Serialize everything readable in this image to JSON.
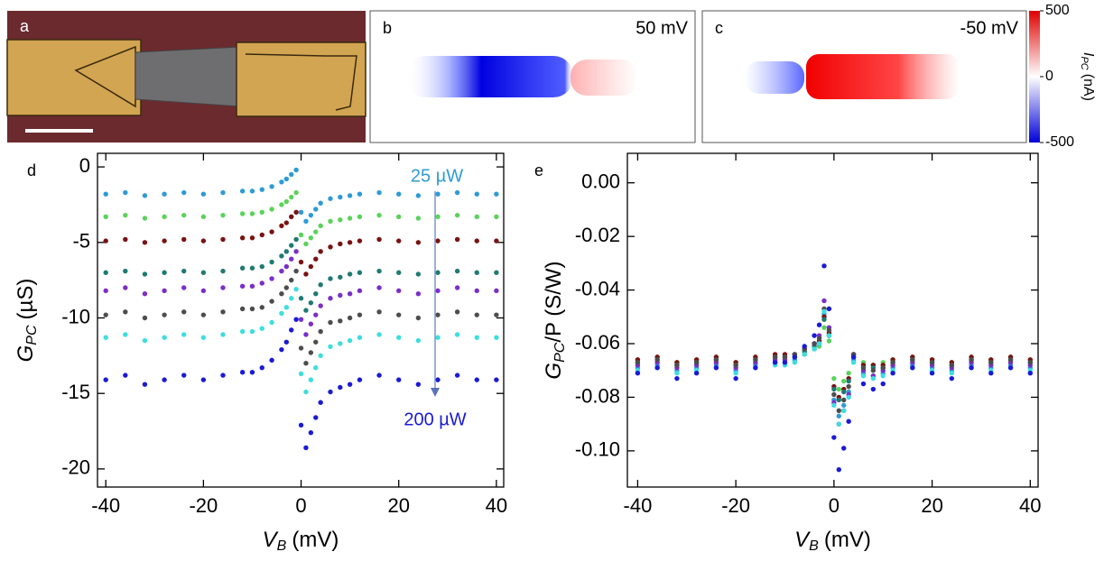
{
  "panel_labels": [
    "a",
    "b",
    "c",
    "d",
    "e"
  ],
  "images": {
    "b_label": "50 mV",
    "c_label": "-50 mV"
  },
  "colorbar": {
    "lim": [
      -500,
      500
    ],
    "ticks": [
      500,
      0,
      -500
    ],
    "label": {
      "main": "I",
      "sub": "PC",
      "unit": "(nA)"
    }
  },
  "chart_data": [
    {
      "type": "scatter",
      "x": [
        -40,
        -36,
        -32,
        -28,
        -24,
        -20,
        -16,
        -12,
        -10,
        -8,
        -6,
        -4,
        -3,
        -2,
        -1,
        0,
        1,
        2,
        3,
        4,
        6,
        8,
        10,
        12,
        16,
        20,
        24,
        28,
        32,
        36,
        40
      ],
      "series": [
        {
          "color": "#2e9bd6",
          "values": [
            -1.8,
            -1.7,
            -1.9,
            -1.8,
            -1.7,
            -1.8,
            -1.7,
            -1.6,
            -1.6,
            -1.5,
            -1.3,
            -1.0,
            -0.8,
            -0.5,
            -0.2,
            -3.0,
            -3.6,
            -3.2,
            -2.8,
            -2.4,
            -2.1,
            -2.0,
            -1.9,
            -1.8,
            -1.7,
            -1.8,
            -1.9,
            -1.8,
            -1.7,
            -1.8,
            -1.8
          ]
        },
        {
          "color": "#5ad35a",
          "values": [
            -3.3,
            -3.2,
            -3.4,
            -3.3,
            -3.2,
            -3.3,
            -3.2,
            -3.1,
            -3.1,
            -3.0,
            -2.8,
            -2.5,
            -2.3,
            -2.0,
            -1.7,
            -4.5,
            -5.1,
            -4.7,
            -4.3,
            -3.9,
            -3.6,
            -3.5,
            -3.4,
            -3.3,
            -3.2,
            -3.3,
            -3.4,
            -3.3,
            -3.2,
            -3.3,
            -3.3
          ]
        },
        {
          "color": "#7a1212",
          "values": [
            -4.9,
            -4.8,
            -5.0,
            -4.9,
            -4.8,
            -4.9,
            -4.8,
            -4.7,
            -4.7,
            -4.5,
            -4.3,
            -3.9,
            -3.7,
            -3.3,
            -3.0,
            -6.3,
            -7.1,
            -6.6,
            -6.1,
            -5.6,
            -5.3,
            -5.1,
            -5.0,
            -4.9,
            -4.8,
            -4.9,
            -5.0,
            -4.9,
            -4.8,
            -4.9,
            -4.9
          ]
        },
        {
          "color": "#1f7a73",
          "values": [
            -7.0,
            -6.9,
            -7.1,
            -7.0,
            -6.9,
            -7.0,
            -6.9,
            -6.7,
            -6.7,
            -6.6,
            -6.3,
            -5.9,
            -5.6,
            -5.2,
            -4.8,
            -8.7,
            -9.5,
            -9.0,
            -8.4,
            -7.8,
            -7.4,
            -7.3,
            -7.1,
            -7.0,
            -6.9,
            -7.0,
            -7.1,
            -7.0,
            -6.9,
            -7.0,
            -7.0
          ]
        },
        {
          "color": "#7b2ec9",
          "values": [
            -8.2,
            -8.0,
            -8.4,
            -8.2,
            -8.0,
            -8.2,
            -8.0,
            -7.9,
            -7.9,
            -7.7,
            -7.4,
            -6.9,
            -6.6,
            -6.1,
            -5.6,
            -10.1,
            -11.1,
            -10.4,
            -9.8,
            -9.2,
            -8.7,
            -8.5,
            -8.4,
            -8.2,
            -8.0,
            -8.2,
            -8.4,
            -8.2,
            -8.0,
            -8.2,
            -8.2
          ]
        },
        {
          "color": "#4d4d4d",
          "values": [
            -9.8,
            -9.6,
            -10.0,
            -9.8,
            -9.6,
            -9.8,
            -9.6,
            -9.4,
            -9.4,
            -9.3,
            -8.9,
            -8.4,
            -8.0,
            -7.5,
            -6.9,
            -12.0,
            -13.0,
            -12.3,
            -11.6,
            -10.9,
            -10.3,
            -10.2,
            -10.0,
            -9.8,
            -9.6,
            -9.8,
            -10.0,
            -9.8,
            -9.6,
            -9.8,
            -9.8
          ]
        },
        {
          "color": "#3ddede",
          "values": [
            -11.3,
            -11.1,
            -11.5,
            -11.3,
            -11.1,
            -11.3,
            -11.1,
            -10.9,
            -10.9,
            -10.7,
            -10.3,
            -9.7,
            -9.3,
            -8.7,
            -8.1,
            -13.7,
            -14.9,
            -14.1,
            -13.3,
            -12.5,
            -11.9,
            -11.7,
            -11.5,
            -11.3,
            -11.1,
            -11.3,
            -11.5,
            -11.3,
            -11.1,
            -11.3,
            -11.3
          ]
        },
        {
          "color": "#1a1ad6",
          "values": [
            -14.1,
            -13.8,
            -14.4,
            -14.1,
            -13.8,
            -14.1,
            -13.8,
            -13.6,
            -13.6,
            -13.3,
            -12.8,
            -12.1,
            -11.6,
            -10.8,
            -10.1,
            -17.1,
            -18.6,
            -17.6,
            -16.6,
            -15.6,
            -14.9,
            -14.6,
            -14.4,
            -14.1,
            -13.8,
            -14.1,
            -14.4,
            -14.1,
            -13.8,
            -14.1,
            -14.1
          ]
        }
      ],
      "xlim": [
        -41.7,
        41.5
      ],
      "ylim": [
        -21.2,
        0.9
      ],
      "xticks": [
        -40,
        -20,
        0,
        20,
        40
      ],
      "yticks": [
        0,
        -5,
        -10,
        -15,
        -20
      ],
      "xlabel": {
        "main": "V",
        "sub": "B",
        "unit": "(mV)"
      },
      "ylabel": {
        "main": "G",
        "sub": "PC",
        "unit": "(µS)"
      },
      "annotations": [
        "25 µW",
        "200 µW"
      ]
    },
    {
      "type": "scatter",
      "x": [
        -40,
        -36,
        -32,
        -28,
        -24,
        -20,
        -16,
        -12,
        -10,
        -8,
        -6,
        -4,
        -3,
        -2,
        -1,
        0,
        1,
        2,
        3,
        4,
        6,
        8,
        10,
        12,
        16,
        20,
        24,
        28,
        32,
        36,
        40
      ],
      "series": [
        {
          "color": "#2e9bd6",
          "values": [
            -0.069,
            -0.068,
            -0.07,
            -0.069,
            -0.068,
            -0.07,
            -0.068,
            -0.067,
            -0.067,
            -0.066,
            -0.064,
            -0.062,
            -0.06,
            -0.049,
            -0.057,
            -0.081,
            -0.087,
            -0.083,
            -0.078,
            -0.066,
            -0.071,
            -0.072,
            -0.071,
            -0.069,
            -0.068,
            -0.069,
            -0.07,
            -0.068,
            -0.069,
            -0.068,
            -0.069
          ]
        },
        {
          "color": "#5ad35a",
          "values": [
            -0.066,
            -0.065,
            -0.067,
            -0.066,
            -0.065,
            -0.067,
            -0.065,
            -0.065,
            -0.065,
            -0.064,
            -0.063,
            -0.062,
            -0.061,
            -0.054,
            -0.059,
            -0.073,
            -0.077,
            -0.074,
            -0.071,
            -0.064,
            -0.067,
            -0.068,
            -0.067,
            -0.066,
            -0.065,
            -0.066,
            -0.067,
            -0.065,
            -0.066,
            -0.065,
            -0.066
          ]
        },
        {
          "color": "#7a1212",
          "values": [
            -0.066,
            -0.065,
            -0.067,
            -0.066,
            -0.065,
            -0.067,
            -0.065,
            -0.064,
            -0.064,
            -0.064,
            -0.062,
            -0.06,
            -0.059,
            -0.05,
            -0.056,
            -0.076,
            -0.08,
            -0.077,
            -0.073,
            -0.064,
            -0.068,
            -0.068,
            -0.068,
            -0.066,
            -0.065,
            -0.066,
            -0.067,
            -0.065,
            -0.066,
            -0.065,
            -0.066
          ]
        },
        {
          "color": "#1f7a73",
          "values": [
            -0.067,
            -0.066,
            -0.068,
            -0.067,
            -0.066,
            -0.068,
            -0.066,
            -0.065,
            -0.065,
            -0.065,
            -0.063,
            -0.061,
            -0.06,
            -0.051,
            -0.057,
            -0.077,
            -0.081,
            -0.078,
            -0.074,
            -0.065,
            -0.069,
            -0.069,
            -0.069,
            -0.067,
            -0.066,
            -0.067,
            -0.068,
            -0.066,
            -0.067,
            -0.066,
            -0.067
          ]
        },
        {
          "color": "#7b2ec9",
          "values": [
            -0.068,
            -0.067,
            -0.069,
            -0.068,
            -0.067,
            -0.069,
            -0.067,
            -0.066,
            -0.066,
            -0.064,
            -0.062,
            -0.06,
            -0.057,
            -0.044,
            -0.054,
            -0.082,
            -0.09,
            -0.085,
            -0.079,
            -0.064,
            -0.07,
            -0.072,
            -0.07,
            -0.068,
            -0.067,
            -0.068,
            -0.069,
            -0.067,
            -0.068,
            -0.067,
            -0.068
          ]
        },
        {
          "color": "#4d4d4d",
          "values": [
            -0.067,
            -0.066,
            -0.068,
            -0.067,
            -0.066,
            -0.068,
            -0.066,
            -0.065,
            -0.065,
            -0.064,
            -0.062,
            -0.06,
            -0.058,
            -0.047,
            -0.055,
            -0.079,
            -0.085,
            -0.081,
            -0.076,
            -0.064,
            -0.069,
            -0.07,
            -0.069,
            -0.067,
            -0.066,
            -0.067,
            -0.068,
            -0.066,
            -0.067,
            -0.066,
            -0.067
          ]
        },
        {
          "color": "#3ddede",
          "values": [
            -0.07,
            -0.069,
            -0.071,
            -0.07,
            -0.069,
            -0.071,
            -0.069,
            -0.068,
            -0.068,
            -0.067,
            -0.064,
            -0.062,
            -0.06,
            -0.048,
            -0.057,
            -0.083,
            -0.09,
            -0.085,
            -0.08,
            -0.067,
            -0.072,
            -0.073,
            -0.072,
            -0.07,
            -0.069,
            -0.07,
            -0.071,
            -0.069,
            -0.07,
            -0.069,
            -0.07
          ]
        },
        {
          "color": "#1a1ad6",
          "values": [
            -0.071,
            -0.069,
            -0.073,
            -0.071,
            -0.069,
            -0.073,
            -0.069,
            -0.067,
            -0.067,
            -0.065,
            -0.061,
            -0.057,
            -0.053,
            -0.031,
            -0.047,
            -0.095,
            -0.107,
            -0.099,
            -0.089,
            -0.065,
            -0.075,
            -0.077,
            -0.075,
            -0.071,
            -0.069,
            -0.071,
            -0.073,
            -0.069,
            -0.071,
            -0.069,
            -0.071
          ]
        }
      ],
      "xlim": [
        -42.1,
        41.6
      ],
      "ylim": [
        -0.1135,
        0.011
      ],
      "xticks": [
        -40,
        -20,
        0,
        20,
        40
      ],
      "yticks": [
        {
          "value": 0,
          "label": "0.00"
        },
        {
          "value": -0.02,
          "label": "-0.02"
        },
        {
          "value": -0.04,
          "label": "-0.04"
        },
        {
          "value": -0.06,
          "label": "-0.06"
        },
        {
          "value": -0.08,
          "label": "-0.08"
        },
        {
          "value": -0.1,
          "label": "-0.10"
        }
      ],
      "xlabel": {
        "main": "V",
        "sub": "B",
        "unit": "(mV)"
      },
      "ylabel": {
        "main": "G",
        "sub": "PC",
        "unit": "/P (S/W)"
      }
    }
  ]
}
